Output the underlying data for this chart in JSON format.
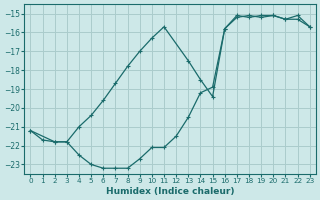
{
  "xlabel": "Humidex (Indice chaleur)",
  "xlim": [
    -0.5,
    23.5
  ],
  "ylim": [
    -23.5,
    -14.5
  ],
  "yticks": [
    -23,
    -22,
    -21,
    -20,
    -19,
    -18,
    -17,
    -16,
    -15
  ],
  "xticks": [
    0,
    1,
    2,
    3,
    4,
    5,
    6,
    7,
    8,
    9,
    10,
    11,
    12,
    13,
    14,
    15,
    16,
    17,
    18,
    19,
    20,
    21,
    22,
    23
  ],
  "background_color": "#cde8e8",
  "grid_color": "#aacccc",
  "line_color": "#1a6b6b",
  "line1_x": [
    0,
    1,
    2,
    3,
    4,
    5,
    6,
    7,
    8,
    9,
    10,
    11,
    12,
    13,
    14,
    15,
    16,
    17,
    18,
    19,
    20,
    21,
    22,
    23
  ],
  "line1_y": [
    -21.2,
    -21.7,
    -21.8,
    -21.8,
    -22.5,
    -23.0,
    -23.2,
    -23.2,
    -23.2,
    -22.7,
    -22.1,
    -22.1,
    -21.5,
    -20.5,
    -19.2,
    -18.9,
    -15.8,
    -15.2,
    -15.1,
    -15.2,
    -15.1,
    -15.3,
    -15.1,
    -15.7
  ],
  "line2_x": [
    0,
    2,
    3,
    4,
    5,
    6,
    7,
    8,
    9,
    10,
    11,
    13,
    14,
    15,
    16,
    17,
    18,
    19,
    20,
    21,
    22,
    23
  ],
  "line2_y": [
    -21.2,
    -21.8,
    -21.8,
    -21.0,
    -20.4,
    -19.6,
    -18.7,
    -17.8,
    -17.0,
    -16.3,
    -15.7,
    -17.5,
    -18.5,
    -19.4,
    -15.8,
    -15.1,
    -15.2,
    -15.1,
    -15.1,
    -15.3,
    -15.3,
    -15.7
  ]
}
